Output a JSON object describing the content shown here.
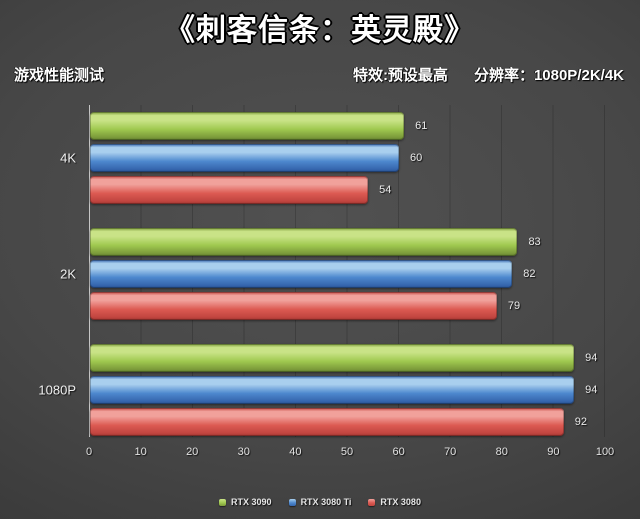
{
  "title": "《刺客信条：英灵殿》",
  "subtitle": {
    "left": "游戏性能测试",
    "effects": "特效:预设最高",
    "resolution": "分辨率：1080P/2K/4K"
  },
  "chart_data": {
    "type": "bar",
    "orientation": "horizontal",
    "title": "《刺客信条：英灵殿》",
    "categories": [
      "4K",
      "2K",
      "1080P"
    ],
    "series": [
      {
        "name": "RTX 3090",
        "values": [
          61,
          83,
          94
        ],
        "colors": {
          "light": "#c9e387",
          "main": "#9fc84f",
          "dark": "#7b9a3a",
          "edge": "#5e7a2e"
        }
      },
      {
        "name": "RTX 3080 Ti",
        "values": [
          60,
          82,
          94
        ],
        "colors": {
          "light": "#a9cfee",
          "main": "#4d88ce",
          "dark": "#3565ad",
          "edge": "#274e8b"
        }
      },
      {
        "name": "RTX 3080",
        "values": [
          54,
          79,
          92
        ],
        "colors": {
          "light": "#f1a19b",
          "main": "#dc5a52",
          "dark": "#c0443f",
          "edge": "#9b3531"
        }
      }
    ],
    "xlim": [
      0,
      100
    ],
    "x_ticks": [
      0,
      10,
      20,
      30,
      40,
      50,
      60,
      70,
      80,
      90,
      100
    ],
    "xlabel": "",
    "ylabel": "",
    "grid": "vertical",
    "legend_position": "bottom",
    "background": "#454545",
    "axis_line_color": "#c6c6c6",
    "value_labels": true
  }
}
